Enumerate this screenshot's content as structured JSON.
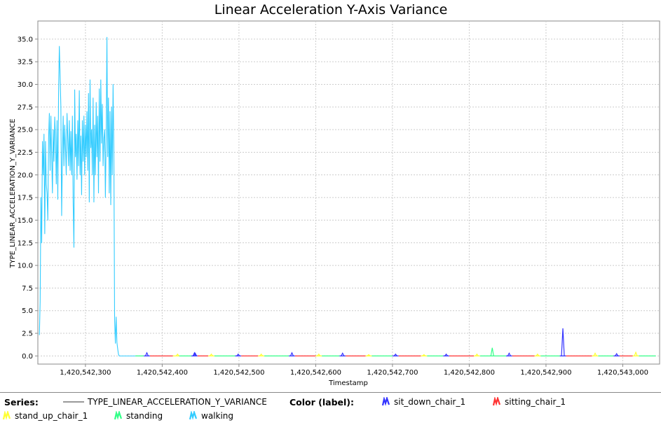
{
  "chart_data": {
    "type": "line",
    "title": "Linear Acceleration Y-Axis Variance",
    "xlabel": "Timestamp",
    "ylabel": "TYPE_LINEAR_ACCELERATION_Y_VARIANCE",
    "xlim": [
      1420542238,
      1420543048
    ],
    "ylim": [
      -0.9,
      37.0
    ],
    "grid": true,
    "x_ticks": [
      1420542300,
      1420542400,
      1420542500,
      1420542600,
      1420542700,
      1420542800,
      1420542900,
      1420543000
    ],
    "x_tick_labels": [
      "1,420,542,300",
      "1,420,542,400",
      "1,420,542,500",
      "1,420,542,600",
      "1,420,542,700",
      "1,420,542,800",
      "1,420,542,900",
      "1,420,543,000"
    ],
    "y_ticks": [
      0,
      2.5,
      5,
      7.5,
      10,
      12.5,
      15,
      17.5,
      20,
      22.5,
      25,
      27.5,
      30,
      32.5,
      35
    ],
    "y_tick_labels": [
      "0.0",
      "2.5",
      "5.0",
      "7.5",
      "10.0",
      "12.5",
      "15.0",
      "17.5",
      "20.0",
      "22.5",
      "25.0",
      "27.5",
      "30.0",
      "32.5",
      "35.0"
    ],
    "series_name": "TYPE_LINEAR_ACCELERATION_Y_VARIANCE",
    "label_colors": {
      "sit_down_chair_1": "#3333ff",
      "sitting_chair_1": "#ff3333",
      "stand_up_chair_1": "#ffff33",
      "standing": "#33ff88",
      "walking": "#33ccff"
    },
    "walking_segment": {
      "label": "walking",
      "x": [
        1420542240,
        1420542241,
        1420542242,
        1420542243,
        1420542244,
        1420542245,
        1420542246,
        1420542247,
        1420542248,
        1420542249,
        1420542250,
        1420542251,
        1420542252,
        1420542253,
        1420542254,
        1420542255,
        1420542256,
        1420542257,
        1420542258,
        1420542259,
        1420542260,
        1420542261,
        1420542262,
        1420542263,
        1420542264,
        1420542265,
        1420542266,
        1420542267,
        1420542268,
        1420542269,
        1420542270,
        1420542271,
        1420542272,
        1420542273,
        1420542274,
        1420542275,
        1420542276,
        1420542277,
        1420542278,
        1420542279,
        1420542280,
        1420542281,
        1420542282,
        1420542283,
        1420542284,
        1420542285,
        1420542286,
        1420542287,
        1420542288,
        1420542289,
        1420542290,
        1420542291,
        1420542292,
        1420542293,
        1420542294,
        1420542295,
        1420542296,
        1420542297,
        1420542298,
        1420542299,
        1420542300,
        1420542301,
        1420542302,
        1420542303,
        1420542304,
        1420542305,
        1420542306,
        1420542307,
        1420542308,
        1420542309,
        1420542310,
        1420542311,
        1420542312,
        1420542313,
        1420542314,
        1420542315,
        1420542316,
        1420542317,
        1420542318,
        1420542319,
        1420542320,
        1420542321,
        1420542322,
        1420542323,
        1420542324,
        1420542325,
        1420542326,
        1420542327,
        1420542328,
        1420542329,
        1420542330,
        1420542331,
        1420542332,
        1420542333,
        1420542334,
        1420542335,
        1420542336,
        1420542337,
        1420542338,
        1420542339,
        1420542340,
        1420542341,
        1420542342,
        1420542343,
        1420542344,
        1420542345,
        1420542346,
        1420542347,
        1420542348,
        1420542349,
        1420542350,
        1420542351,
        1420542352,
        1420542353,
        1420542354,
        1420542355,
        1420542356,
        1420542357,
        1420542358,
        1420542359,
        1420542360,
        1420542361,
        1420542362,
        1420542363,
        1420542364,
        1420542365
      ],
      "y": [
        2.3,
        6.0,
        17.5,
        12.5,
        23.7,
        20.0,
        24.5,
        13.5,
        23.7,
        19.0,
        17.9,
        15.0,
        24.0,
        26.8,
        20.5,
        26.5,
        22.0,
        18.0,
        25.0,
        21.5,
        26.4,
        24.0,
        19.0,
        26.0,
        17.3,
        29.0,
        34.2,
        31.0,
        27.5,
        15.5,
        22.0,
        26.5,
        21.0,
        25.5,
        23.0,
        20.0,
        26.8,
        24.0,
        21.0,
        26.0,
        20.5,
        24.8,
        20.0,
        26.5,
        17.0,
        12.0,
        29.4,
        22.0,
        24.5,
        19.5,
        26.0,
        21.0,
        29.3,
        20.0,
        24.3,
        17.8,
        26.0,
        21.5,
        26.5,
        20.0,
        25.5,
        22.0,
        27.0,
        20.5,
        29.0,
        17.0,
        30.5,
        23.0,
        25.0,
        20.0,
        28.5,
        17.0,
        25.5,
        20.0,
        28.0,
        22.0,
        26.5,
        18.0,
        29.5,
        21.5,
        30.5,
        23.5,
        27.8,
        21.0,
        24.0,
        25.0,
        17.5,
        24.0,
        35.2,
        22.0,
        28.5,
        18.0,
        27.0,
        16.7,
        27.5,
        20.0,
        30.0,
        23.0,
        4.0,
        1.4,
        4.3,
        1.5,
        0.8,
        0.2,
        0.0,
        0.0,
        0.0,
        0.0,
        0.0,
        0.0,
        0.0,
        0.0,
        0.0,
        0.0,
        0.0,
        0.0,
        0.0,
        0.0,
        0.0,
        0.0,
        0.0,
        0.0,
        0.0,
        0.0,
        0.0,
        0.0
      ]
    },
    "baseline_segments": [
      {
        "label": "standing",
        "x0": 1420542365,
        "x1": 1420542376
      },
      {
        "label": "sit_down_chair_1",
        "x0": 1420542376,
        "x1": 1420542384
      },
      {
        "label": "sitting_chair_1",
        "x0": 1420542384,
        "x1": 1420542414
      },
      {
        "label": "stand_up_chair_1",
        "x0": 1420542414,
        "x1": 1420542422
      },
      {
        "label": "standing",
        "x0": 1420542422,
        "x1": 1420542438
      },
      {
        "label": "sit_down_chair_1",
        "x0": 1420542438,
        "x1": 1420542446
      },
      {
        "label": "sitting_chair_1",
        "x0": 1420542446,
        "x1": 1420542460
      },
      {
        "label": "stand_up_chair_1",
        "x0": 1420542460,
        "x1": 1420542468
      },
      {
        "label": "standing",
        "x0": 1420542468,
        "x1": 1420542495
      },
      {
        "label": "sit_down_chair_1",
        "x0": 1420542495,
        "x1": 1420542503
      },
      {
        "label": "sitting_chair_1",
        "x0": 1420542503,
        "x1": 1420542525
      },
      {
        "label": "stand_up_chair_1",
        "x0": 1420542525,
        "x1": 1420542533
      },
      {
        "label": "standing",
        "x0": 1420542533,
        "x1": 1420542565
      },
      {
        "label": "sit_down_chair_1",
        "x0": 1420542565,
        "x1": 1420542573
      },
      {
        "label": "sitting_chair_1",
        "x0": 1420542573,
        "x1": 1420542600
      },
      {
        "label": "stand_up_chair_1",
        "x0": 1420542600,
        "x1": 1420542608
      },
      {
        "label": "standing",
        "x0": 1420542608,
        "x1": 1420542631
      },
      {
        "label": "sit_down_chair_1",
        "x0": 1420542631,
        "x1": 1420542639
      },
      {
        "label": "sitting_chair_1",
        "x0": 1420542639,
        "x1": 1420542665
      },
      {
        "label": "stand_up_chair_1",
        "x0": 1420542665,
        "x1": 1420542673
      },
      {
        "label": "standing",
        "x0": 1420542673,
        "x1": 1420542700
      },
      {
        "label": "sit_down_chair_1",
        "x0": 1420542700,
        "x1": 1420542708
      },
      {
        "label": "sitting_chair_1",
        "x0": 1420542708,
        "x1": 1420542737
      },
      {
        "label": "stand_up_chair_1",
        "x0": 1420542737,
        "x1": 1420542745
      },
      {
        "label": "standing",
        "x0": 1420542745,
        "x1": 1420542766
      },
      {
        "label": "sit_down_chair_1",
        "x0": 1420542766,
        "x1": 1420542774
      },
      {
        "label": "sitting_chair_1",
        "x0": 1420542774,
        "x1": 1420542806
      },
      {
        "label": "stand_up_chair_1",
        "x0": 1420542806,
        "x1": 1420542814
      },
      {
        "label": "standing",
        "x0": 1420542814,
        "x1": 1420542848
      },
      {
        "label": "sit_down_chair_1",
        "x0": 1420542848,
        "x1": 1420542856
      },
      {
        "label": "sitting_chair_1",
        "x0": 1420542856,
        "x1": 1420542885
      },
      {
        "label": "stand_up_chair_1",
        "x0": 1420542885,
        "x1": 1420542893
      },
      {
        "label": "standing",
        "x0": 1420542893,
        "x1": 1420542918
      },
      {
        "label": "sit_down_chair_1",
        "x0": 1420542918,
        "x1": 1420542926
      },
      {
        "label": "sitting_chair_1",
        "x0": 1420542926,
        "x1": 1420542960
      },
      {
        "label": "stand_up_chair_1",
        "x0": 1420542960,
        "x1": 1420542968
      },
      {
        "label": "standing",
        "x0": 1420542968,
        "x1": 1420542988
      },
      {
        "label": "sit_down_chair_1",
        "x0": 1420542988,
        "x1": 1420542996
      },
      {
        "label": "sitting_chair_1",
        "x0": 1420542996,
        "x1": 1420543013
      },
      {
        "label": "stand_up_chair_1",
        "x0": 1420543013,
        "x1": 1420543021
      },
      {
        "label": "standing",
        "x0": 1420543021,
        "x1": 1420543043
      }
    ],
    "spikes": [
      {
        "x": 1420542380,
        "y": 0.35,
        "label": "sit_down_chair_1"
      },
      {
        "x": 1420542420,
        "y": 0.2,
        "label": "stand_up_chair_1"
      },
      {
        "x": 1420542442,
        "y": 0.35,
        "label": "sit_down_chair_1"
      },
      {
        "x": 1420542443,
        "y": 0.3,
        "label": "sit_down_chair_1"
      },
      {
        "x": 1420542464,
        "y": 0.2,
        "label": "stand_up_chair_1"
      },
      {
        "x": 1420542499,
        "y": 0.2,
        "label": "sit_down_chair_1"
      },
      {
        "x": 1420542529,
        "y": 0.2,
        "label": "stand_up_chair_1"
      },
      {
        "x": 1420542569,
        "y": 0.35,
        "label": "sit_down_chair_1"
      },
      {
        "x": 1420542604,
        "y": 0.2,
        "label": "stand_up_chair_1"
      },
      {
        "x": 1420542635,
        "y": 0.3,
        "label": "sit_down_chair_1"
      },
      {
        "x": 1420542669,
        "y": 0.15,
        "label": "stand_up_chair_1"
      },
      {
        "x": 1420542704,
        "y": 0.2,
        "label": "sit_down_chair_1"
      },
      {
        "x": 1420542741,
        "y": 0.15,
        "label": "stand_up_chair_1"
      },
      {
        "x": 1420542770,
        "y": 0.2,
        "label": "sit_down_chair_1"
      },
      {
        "x": 1420542810,
        "y": 0.2,
        "label": "stand_up_chair_1"
      },
      {
        "x": 1420542830,
        "y": 0.9,
        "label": "standing"
      },
      {
        "x": 1420542852,
        "y": 0.3,
        "label": "sit_down_chair_1"
      },
      {
        "x": 1420542889,
        "y": 0.2,
        "label": "stand_up_chair_1"
      },
      {
        "x": 1420542922,
        "y": 3.05,
        "label": "sit_down_chair_1"
      },
      {
        "x": 1420542964,
        "y": 0.3,
        "label": "stand_up_chair_1"
      },
      {
        "x": 1420542992,
        "y": 0.25,
        "label": "sit_down_chair_1"
      },
      {
        "x": 1420543017,
        "y": 0.4,
        "label": "stand_up_chair_1"
      }
    ]
  },
  "legend": {
    "series_heading": "Series:",
    "series_name": "TYPE_LINEAR_ACCELERATION_Y_VARIANCE",
    "color_heading": "Color (label):",
    "labels": [
      "sit_down_chair_1",
      "sitting_chair_1",
      "stand_up_chair_1",
      "standing",
      "walking"
    ]
  }
}
